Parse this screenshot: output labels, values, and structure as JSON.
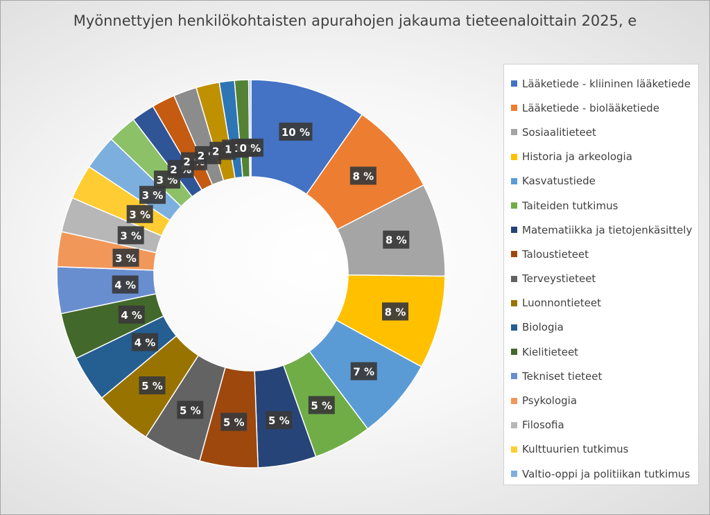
{
  "chart_data": {
    "type": "pie",
    "donut": true,
    "title": "Myönnettyjen henkilökohtaisten apurahojen jakauma tieteenaloittain 2025, e",
    "legend_position": "right",
    "slices": [
      {
        "label": "Lääketiede - kliininen lääketiede",
        "value": 10,
        "data_label": "10 %",
        "color": "#4472c4"
      },
      {
        "label": "Lääketiede - biolääketiede",
        "value": 8,
        "data_label": "8 %",
        "color": "#ed7d31"
      },
      {
        "label": "Sosiaalitieteet",
        "value": 8,
        "data_label": "8 %",
        "color": "#a5a5a5"
      },
      {
        "label": "Historia ja arkeologia",
        "value": 8,
        "data_label": "8 %",
        "color": "#ffc000"
      },
      {
        "label": "Kasvatustiede",
        "value": 7,
        "data_label": "7 %",
        "color": "#5b9bd5"
      },
      {
        "label": "Taiteiden tutkimus",
        "value": 5,
        "data_label": "5 %",
        "color": "#70ad47"
      },
      {
        "label": "Matematiikka ja tietojenkäsittely",
        "value": 5,
        "data_label": "5 %",
        "color": "#264478"
      },
      {
        "label": "Taloustieteet",
        "value": 5,
        "data_label": "5 %",
        "color": "#9e480e"
      },
      {
        "label": "Terveystieteet",
        "value": 5,
        "data_label": "5 %",
        "color": "#636363"
      },
      {
        "label": "Luonnontieteet",
        "value": 5,
        "data_label": "5 %",
        "color": "#997300"
      },
      {
        "label": "Biologia",
        "value": 4,
        "data_label": "4 %",
        "color": "#255e91"
      },
      {
        "label": "Kielitieteet",
        "value": 4,
        "data_label": "4 %",
        "color": "#43682b"
      },
      {
        "label": "Tekniset tieteet",
        "value": 4,
        "data_label": "4 %",
        "color": "#698ed0"
      },
      {
        "label": "Psykologia",
        "value": 3,
        "data_label": "3 %",
        "color": "#f1975a"
      },
      {
        "label": "Filosofia",
        "value": 3,
        "data_label": "3 %",
        "color": "#b7b7b7"
      },
      {
        "label": "Kulttuurien tutkimus",
        "value": 3,
        "data_label": "3 %",
        "color": "#ffcd33"
      },
      {
        "label": "Valtio-oppi ja politiikan tutkimus",
        "value": 3,
        "data_label": "3 %",
        "color": "#7cafdd"
      },
      {
        "value": 2.5,
        "data_label": "3 %",
        "color": "#8cc168"
      },
      {
        "value": 2,
        "data_label": "2 %",
        "color": "#2f5597"
      },
      {
        "value": 2,
        "data_label": "2 %",
        "color": "#c55a11"
      },
      {
        "value": 2,
        "data_label": "2 %",
        "color": "#8c8c8c"
      },
      {
        "value": 2,
        "data_label": "2 %",
        "color": "#bf9000"
      },
      {
        "value": 1.3,
        "data_label": "1 %",
        "color": "#2e75b6"
      },
      {
        "value": 1.2,
        "data_label": "1 %",
        "color": "#548235"
      },
      {
        "value": 0.2,
        "data_label": "0 %",
        "color": "#a9c1e8"
      }
    ]
  }
}
